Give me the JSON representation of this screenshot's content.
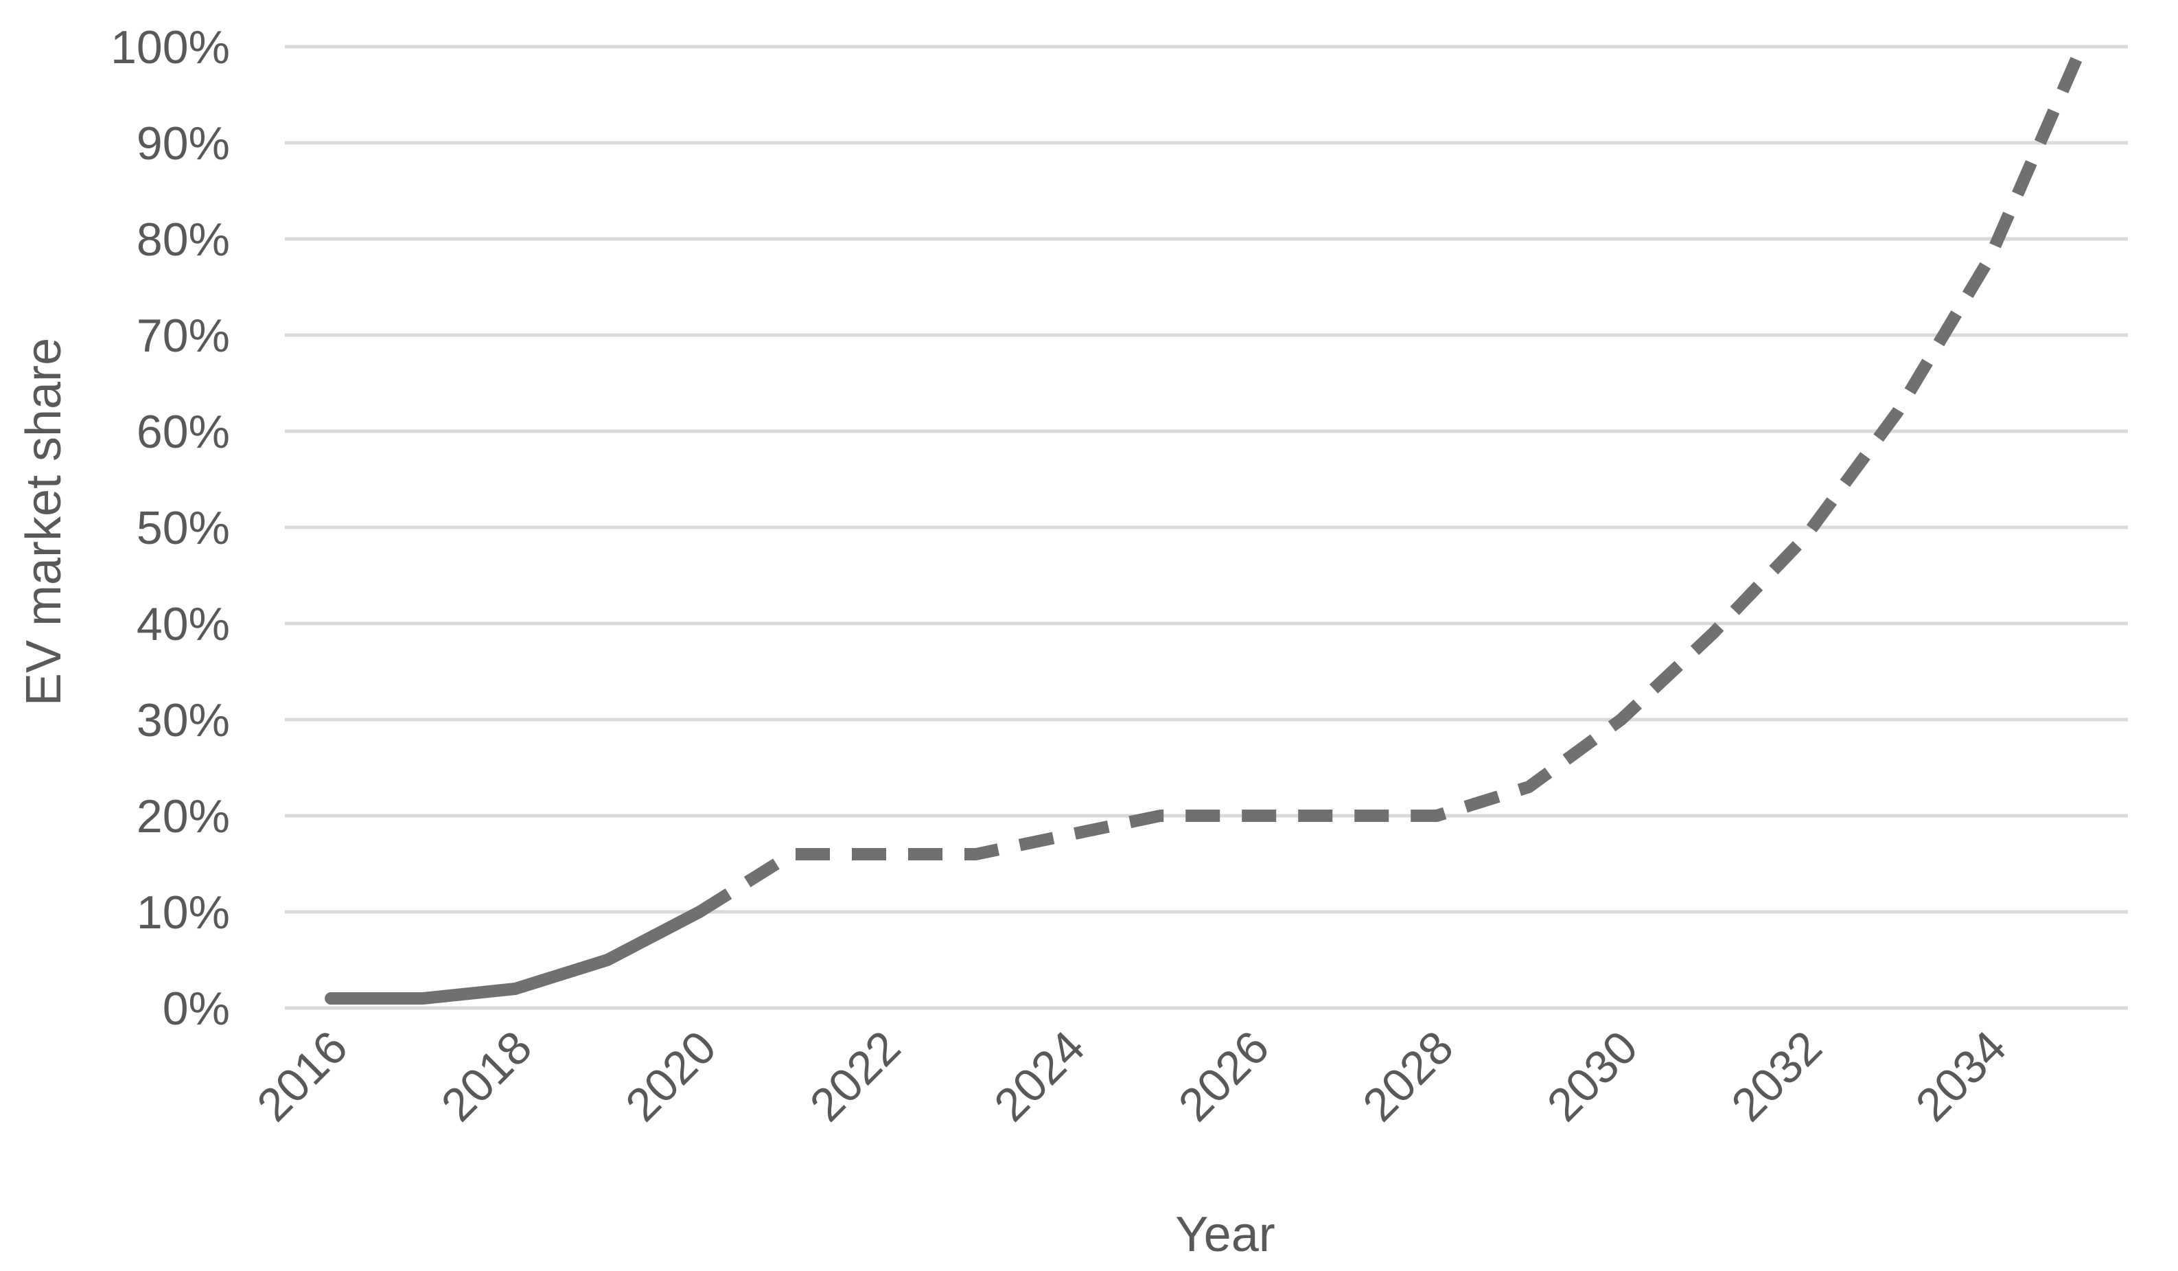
{
  "chart_data": {
    "type": "line",
    "title": "",
    "xlabel": "Year",
    "ylabel": "EV market share",
    "xlim": [
      2015.5,
      2035.5
    ],
    "ylim": [
      0,
      100
    ],
    "x_ticks": [
      2016,
      2018,
      2020,
      2022,
      2024,
      2026,
      2028,
      2030,
      2032,
      2034
    ],
    "y_ticks": [
      0,
      10,
      20,
      30,
      40,
      50,
      60,
      70,
      80,
      90,
      100
    ],
    "y_tick_labels": [
      "0%",
      "10%",
      "20%",
      "30%",
      "40%",
      "50%",
      "60%",
      "70%",
      "80%",
      "90%",
      "100%"
    ],
    "grid": true,
    "legend": "none",
    "line_color": "#707070",
    "series": [
      {
        "style": "solid",
        "x": [
          2016,
          2017,
          2018,
          2019,
          2020
        ],
        "y": [
          1,
          1,
          2,
          5,
          10
        ]
      },
      {
        "style": "dashed",
        "x": [
          2020,
          2021,
          2022,
          2023,
          2024,
          2025,
          2026,
          2027,
          2028,
          2029,
          2030,
          2031,
          2032,
          2033,
          2034,
          2035
        ],
        "y": [
          10,
          16,
          16,
          16,
          18,
          20,
          20,
          20,
          20,
          23,
          30,
          39,
          49,
          62,
          78,
          100
        ]
      }
    ]
  }
}
